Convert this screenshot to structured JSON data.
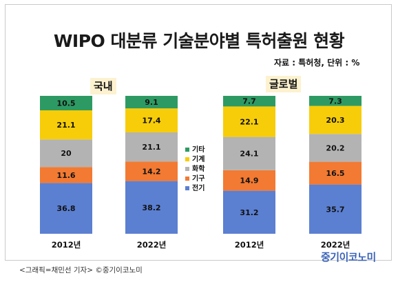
{
  "title": "WIPO 대분류 기술분야별 특허출원 현황",
  "source": "자료 : 특허청, 단위 : %",
  "group_labels": [
    "국내",
    "글로벌"
  ],
  "chart_data": {
    "type": "bar",
    "stacked": true,
    "unit": "%",
    "categories": [
      "2012년",
      "2022년",
      "2012년",
      "2022년"
    ],
    "groups": [
      "국내",
      "국내",
      "글로벌",
      "글로벌"
    ],
    "series": [
      {
        "name": "전기",
        "color": "#5b7fd1",
        "values": [
          36.8,
          38.2,
          31.2,
          35.7
        ]
      },
      {
        "name": "기구",
        "color": "#f27a32",
        "values": [
          11.6,
          14.2,
          14.9,
          16.5
        ]
      },
      {
        "name": "화학",
        "color": "#b3b3b3",
        "values": [
          20,
          21.1,
          24.1,
          20.2
        ]
      },
      {
        "name": "기계",
        "color": "#f7cd09",
        "values": [
          21.1,
          17.4,
          22.1,
          20.3
        ]
      },
      {
        "name": "기타",
        "color": "#2e9a63",
        "values": [
          10.5,
          9.1,
          7.7,
          7.3
        ]
      }
    ],
    "value_labels": [
      [
        "36.8",
        "38.2",
        "31.2",
        "35.7"
      ],
      [
        "11.6",
        "14.2",
        "14.9",
        "16.5"
      ],
      [
        "20",
        "21.1",
        "24.1",
        "20.2"
      ],
      [
        "21.1",
        "17.4",
        "22.1",
        "20.3"
      ],
      [
        "10.5",
        "9.1",
        "7.7",
        "7.3"
      ]
    ],
    "legend_order": [
      "기타",
      "기계",
      "화학",
      "기구",
      "전기"
    ],
    "legend_position": "center"
  },
  "credit": "<그래픽=채민선 기자>   ©중기이코노미",
  "brand": "중기이코노미"
}
